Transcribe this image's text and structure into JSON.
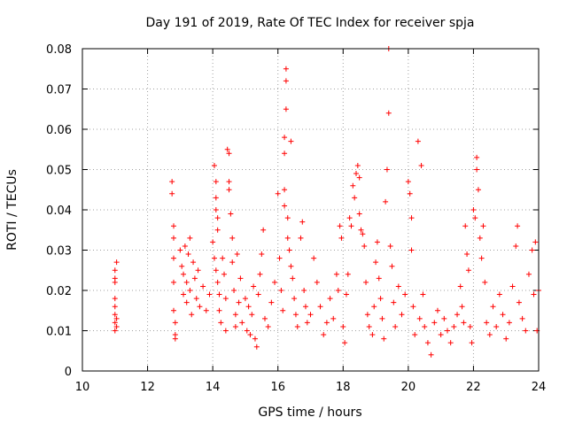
{
  "chart_data": {
    "type": "scatter",
    "title": "Day 191 of 2019, Rate Of TEC Index for receiver spja",
    "xlabel": "GPS time / hours",
    "ylabel": "ROTI / TECUs",
    "xlim": [
      10,
      24
    ],
    "ylim": [
      0,
      0.08
    ],
    "xticks": [
      "10",
      "12",
      "14",
      "16",
      "18",
      "20",
      "22",
      "24"
    ],
    "yticks": [
      "0",
      "0.01",
      "0.02",
      "0.03",
      "0.04",
      "0.05",
      "0.06",
      "0.07",
      "0.08"
    ],
    "grid": true,
    "marker": "+",
    "color": "#ff0000",
    "series": [
      {
        "name": "ROTI",
        "points": [
          [
            11.0,
            0.01
          ],
          [
            11.0,
            0.012
          ],
          [
            11.0,
            0.014
          ],
          [
            11.0,
            0.016
          ],
          [
            11.0,
            0.018
          ],
          [
            11.0,
            0.022
          ],
          [
            11.0,
            0.023
          ],
          [
            11.0,
            0.025
          ],
          [
            11.05,
            0.027
          ],
          [
            11.05,
            0.011
          ],
          [
            11.05,
            0.013
          ],
          [
            12.75,
            0.047
          ],
          [
            12.75,
            0.044
          ],
          [
            12.8,
            0.036
          ],
          [
            12.8,
            0.033
          ],
          [
            12.8,
            0.028
          ],
          [
            12.8,
            0.022
          ],
          [
            12.8,
            0.015
          ],
          [
            12.85,
            0.012
          ],
          [
            12.85,
            0.009
          ],
          [
            12.85,
            0.008
          ],
          [
            13.0,
            0.03
          ],
          [
            13.05,
            0.026
          ],
          [
            13.1,
            0.024
          ],
          [
            13.1,
            0.019
          ],
          [
            13.15,
            0.031
          ],
          [
            13.2,
            0.022
          ],
          [
            13.2,
            0.017
          ],
          [
            13.25,
            0.029
          ],
          [
            13.3,
            0.033
          ],
          [
            13.3,
            0.02
          ],
          [
            13.35,
            0.014
          ],
          [
            13.4,
            0.027
          ],
          [
            13.45,
            0.023
          ],
          [
            13.5,
            0.018
          ],
          [
            13.55,
            0.025
          ],
          [
            13.6,
            0.016
          ],
          [
            13.7,
            0.021
          ],
          [
            13.8,
            0.015
          ],
          [
            13.9,
            0.019
          ],
          [
            14.05,
            0.051
          ],
          [
            14.1,
            0.047
          ],
          [
            14.1,
            0.043
          ],
          [
            14.1,
            0.04
          ],
          [
            14.15,
            0.038
          ],
          [
            14.15,
            0.035
          ],
          [
            14.0,
            0.032
          ],
          [
            14.05,
            0.028
          ],
          [
            14.1,
            0.025
          ],
          [
            14.15,
            0.022
          ],
          [
            14.2,
            0.019
          ],
          [
            14.2,
            0.015
          ],
          [
            14.25,
            0.012
          ],
          [
            14.3,
            0.028
          ],
          [
            14.35,
            0.024
          ],
          [
            14.4,
            0.018
          ],
          [
            14.4,
            0.01
          ],
          [
            14.45,
            0.055
          ],
          [
            14.5,
            0.054
          ],
          [
            14.5,
            0.047
          ],
          [
            14.5,
            0.045
          ],
          [
            14.55,
            0.039
          ],
          [
            14.6,
            0.033
          ],
          [
            14.6,
            0.027
          ],
          [
            14.65,
            0.02
          ],
          [
            14.7,
            0.014
          ],
          [
            14.7,
            0.011
          ],
          [
            14.75,
            0.029
          ],
          [
            14.8,
            0.017
          ],
          [
            14.85,
            0.023
          ],
          [
            14.9,
            0.012
          ],
          [
            15.0,
            0.018
          ],
          [
            15.05,
            0.01
          ],
          [
            15.1,
            0.016
          ],
          [
            15.15,
            0.009
          ],
          [
            15.2,
            0.014
          ],
          [
            15.25,
            0.021
          ],
          [
            15.3,
            0.008
          ],
          [
            15.35,
            0.006
          ],
          [
            15.4,
            0.019
          ],
          [
            15.45,
            0.024
          ],
          [
            15.5,
            0.029
          ],
          [
            15.55,
            0.035
          ],
          [
            15.6,
            0.013
          ],
          [
            15.7,
            0.011
          ],
          [
            15.8,
            0.017
          ],
          [
            15.9,
            0.022
          ],
          [
            16.0,
            0.044
          ],
          [
            16.05,
            0.028
          ],
          [
            16.1,
            0.02
          ],
          [
            16.15,
            0.015
          ],
          [
            16.2,
            0.058
          ],
          [
            16.2,
            0.054
          ],
          [
            16.2,
            0.045
          ],
          [
            16.2,
            0.041
          ],
          [
            16.25,
            0.075
          ],
          [
            16.25,
            0.072
          ],
          [
            16.25,
            0.065
          ],
          [
            16.3,
            0.038
          ],
          [
            16.3,
            0.033
          ],
          [
            16.35,
            0.03
          ],
          [
            16.4,
            0.057
          ],
          [
            16.4,
            0.026
          ],
          [
            16.45,
            0.023
          ],
          [
            16.5,
            0.018
          ],
          [
            16.55,
            0.014
          ],
          [
            16.6,
            0.011
          ],
          [
            16.7,
            0.033
          ],
          [
            16.75,
            0.037
          ],
          [
            16.8,
            0.02
          ],
          [
            16.85,
            0.016
          ],
          [
            16.9,
            0.012
          ],
          [
            17.0,
            0.014
          ],
          [
            17.1,
            0.028
          ],
          [
            17.2,
            0.022
          ],
          [
            17.3,
            0.016
          ],
          [
            17.4,
            0.009
          ],
          [
            17.5,
            0.012
          ],
          [
            17.6,
            0.018
          ],
          [
            17.7,
            0.013
          ],
          [
            17.8,
            0.024
          ],
          [
            17.85,
            0.02
          ],
          [
            17.9,
            0.036
          ],
          [
            17.95,
            0.033
          ],
          [
            18.0,
            0.011
          ],
          [
            18.05,
            0.007
          ],
          [
            18.1,
            0.019
          ],
          [
            18.15,
            0.024
          ],
          [
            18.2,
            0.038
          ],
          [
            18.25,
            0.036
          ],
          [
            18.3,
            0.046
          ],
          [
            18.35,
            0.043
          ],
          [
            18.4,
            0.049
          ],
          [
            18.45,
            0.051
          ],
          [
            18.5,
            0.048
          ],
          [
            18.5,
            0.039
          ],
          [
            18.55,
            0.035
          ],
          [
            18.6,
            0.034
          ],
          [
            18.65,
            0.031
          ],
          [
            18.7,
            0.022
          ],
          [
            18.75,
            0.014
          ],
          [
            18.8,
            0.011
          ],
          [
            18.9,
            0.009
          ],
          [
            18.95,
            0.016
          ],
          [
            19.0,
            0.027
          ],
          [
            19.05,
            0.032
          ],
          [
            19.1,
            0.023
          ],
          [
            19.15,
            0.018
          ],
          [
            19.2,
            0.013
          ],
          [
            19.25,
            0.008
          ],
          [
            19.3,
            0.042
          ],
          [
            19.35,
            0.05
          ],
          [
            19.4,
            0.064
          ],
          [
            19.4,
            0.08
          ],
          [
            19.45,
            0.031
          ],
          [
            19.5,
            0.026
          ],
          [
            19.55,
            0.017
          ],
          [
            19.6,
            0.011
          ],
          [
            19.7,
            0.021
          ],
          [
            19.8,
            0.014
          ],
          [
            19.9,
            0.019
          ],
          [
            20.0,
            0.047
          ],
          [
            20.05,
            0.044
          ],
          [
            20.1,
            0.038
          ],
          [
            20.1,
            0.03
          ],
          [
            20.15,
            0.016
          ],
          [
            20.2,
            0.009
          ],
          [
            20.3,
            0.057
          ],
          [
            20.35,
            0.013
          ],
          [
            20.4,
            0.051
          ],
          [
            20.45,
            0.019
          ],
          [
            20.5,
            0.011
          ],
          [
            20.6,
            0.007
          ],
          [
            20.7,
            0.004
          ],
          [
            20.8,
            0.012
          ],
          [
            20.9,
            0.015
          ],
          [
            21.0,
            0.009
          ],
          [
            21.1,
            0.013
          ],
          [
            21.2,
            0.01
          ],
          [
            21.3,
            0.007
          ],
          [
            21.4,
            0.011
          ],
          [
            21.5,
            0.014
          ],
          [
            21.6,
            0.021
          ],
          [
            21.65,
            0.016
          ],
          [
            21.7,
            0.012
          ],
          [
            21.75,
            0.036
          ],
          [
            21.8,
            0.029
          ],
          [
            21.85,
            0.025
          ],
          [
            21.9,
            0.011
          ],
          [
            21.95,
            0.007
          ],
          [
            22.0,
            0.04
          ],
          [
            22.05,
            0.038
          ],
          [
            22.1,
            0.053
          ],
          [
            22.1,
            0.05
          ],
          [
            22.15,
            0.045
          ],
          [
            22.2,
            0.033
          ],
          [
            22.25,
            0.028
          ],
          [
            22.3,
            0.036
          ],
          [
            22.35,
            0.022
          ],
          [
            22.4,
            0.012
          ],
          [
            22.5,
            0.009
          ],
          [
            22.6,
            0.016
          ],
          [
            22.7,
            0.011
          ],
          [
            22.8,
            0.019
          ],
          [
            22.9,
            0.014
          ],
          [
            23.0,
            0.008
          ],
          [
            23.1,
            0.012
          ],
          [
            23.2,
            0.021
          ],
          [
            23.3,
            0.031
          ],
          [
            23.35,
            0.036
          ],
          [
            23.4,
            0.017
          ],
          [
            23.5,
            0.013
          ],
          [
            23.6,
            0.01
          ],
          [
            23.7,
            0.024
          ],
          [
            23.8,
            0.03
          ],
          [
            23.85,
            0.019
          ],
          [
            23.9,
            0.032
          ],
          [
            23.95,
            0.01
          ],
          [
            24.0,
            0.02
          ]
        ]
      }
    ]
  }
}
